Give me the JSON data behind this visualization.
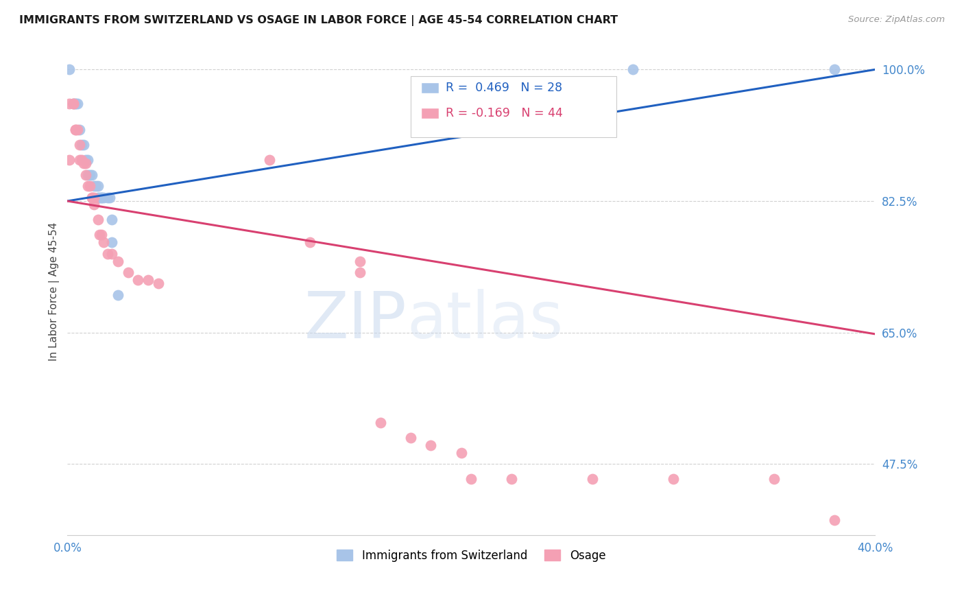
{
  "title": "IMMIGRANTS FROM SWITZERLAND VS OSAGE IN LABOR FORCE | AGE 45-54 CORRELATION CHART",
  "source": "Source: ZipAtlas.com",
  "ylabel": "In Labor Force | Age 45-54",
  "xlim": [
    0.0,
    0.4
  ],
  "ylim": [
    0.38,
    1.03
  ],
  "yticks": [
    0.475,
    0.65,
    0.825,
    1.0
  ],
  "ytick_labels": [
    "47.5%",
    "65.0%",
    "82.5%",
    "100.0%"
  ],
  "xtick_vals": [
    0.0,
    0.4
  ],
  "xtick_labels": [
    "0.0%",
    "40.0%"
  ],
  "legend_label_blue": "Immigrants from Switzerland",
  "legend_label_pink": "Osage",
  "r_blue": 0.469,
  "n_blue": 28,
  "r_pink": -0.169,
  "n_pink": 44,
  "scatter_blue": [
    [
      0.001,
      1.0
    ],
    [
      0.003,
      0.955
    ],
    [
      0.004,
      0.955
    ],
    [
      0.004,
      0.955
    ],
    [
      0.005,
      0.955
    ],
    [
      0.006,
      0.92
    ],
    [
      0.007,
      0.9
    ],
    [
      0.008,
      0.9
    ],
    [
      0.009,
      0.88
    ],
    [
      0.01,
      0.88
    ],
    [
      0.01,
      0.86
    ],
    [
      0.011,
      0.86
    ],
    [
      0.012,
      0.86
    ],
    [
      0.013,
      0.845
    ],
    [
      0.014,
      0.845
    ],
    [
      0.015,
      0.845
    ],
    [
      0.015,
      0.83
    ],
    [
      0.016,
      0.83
    ],
    [
      0.017,
      0.83
    ],
    [
      0.017,
      0.83
    ],
    [
      0.018,
      0.83
    ],
    [
      0.02,
      0.83
    ],
    [
      0.021,
      0.83
    ],
    [
      0.022,
      0.8
    ],
    [
      0.022,
      0.77
    ],
    [
      0.025,
      0.7
    ],
    [
      0.28,
      1.0
    ],
    [
      0.38,
      1.0
    ]
  ],
  "scatter_pink": [
    [
      0.001,
      0.955
    ],
    [
      0.001,
      0.88
    ],
    [
      0.003,
      0.955
    ],
    [
      0.003,
      0.955
    ],
    [
      0.004,
      0.92
    ],
    [
      0.004,
      0.92
    ],
    [
      0.005,
      0.92
    ],
    [
      0.006,
      0.9
    ],
    [
      0.006,
      0.88
    ],
    [
      0.007,
      0.88
    ],
    [
      0.008,
      0.875
    ],
    [
      0.009,
      0.875
    ],
    [
      0.009,
      0.86
    ],
    [
      0.01,
      0.845
    ],
    [
      0.011,
      0.845
    ],
    [
      0.012,
      0.83
    ],
    [
      0.012,
      0.83
    ],
    [
      0.013,
      0.83
    ],
    [
      0.013,
      0.82
    ],
    [
      0.015,
      0.8
    ],
    [
      0.016,
      0.78
    ],
    [
      0.017,
      0.78
    ],
    [
      0.018,
      0.77
    ],
    [
      0.02,
      0.755
    ],
    [
      0.022,
      0.755
    ],
    [
      0.025,
      0.745
    ],
    [
      0.03,
      0.73
    ],
    [
      0.035,
      0.72
    ],
    [
      0.04,
      0.72
    ],
    [
      0.045,
      0.715
    ],
    [
      0.1,
      0.88
    ],
    [
      0.12,
      0.77
    ],
    [
      0.145,
      0.745
    ],
    [
      0.145,
      0.73
    ],
    [
      0.155,
      0.53
    ],
    [
      0.17,
      0.51
    ],
    [
      0.18,
      0.5
    ],
    [
      0.195,
      0.49
    ],
    [
      0.2,
      0.455
    ],
    [
      0.22,
      0.455
    ],
    [
      0.26,
      0.455
    ],
    [
      0.3,
      0.455
    ],
    [
      0.35,
      0.455
    ],
    [
      0.38,
      0.4
    ]
  ],
  "blue_line_x": [
    0.0,
    0.4
  ],
  "blue_line_y": [
    0.825,
    1.0
  ],
  "pink_line_x": [
    0.0,
    0.4
  ],
  "pink_line_y": [
    0.825,
    0.648
  ],
  "dot_color_blue": "#a8c4e8",
  "dot_color_pink": "#f4a0b4",
  "line_color_blue": "#2060c0",
  "line_color_pink": "#d84070",
  "grid_color": "#d0d0d0",
  "axis_color": "#4488cc",
  "watermark_zip": "ZIP",
  "watermark_atlas": "atlas",
  "background_color": "#ffffff"
}
